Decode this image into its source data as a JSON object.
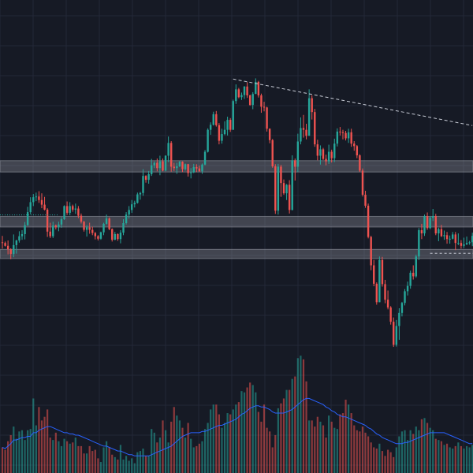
{
  "chart_data": {
    "type": "candlestick",
    "xlabel": "",
    "ylabel": "",
    "ylim": [
      0,
      100
    ],
    "grid": true,
    "colors": {
      "background": "#161a25",
      "grid": "#232838",
      "up": "#26a69a",
      "down": "#ef5350",
      "zone": "#9598a1",
      "trendline": "#c8ccd6",
      "volume_ma": "#2962ff"
    },
    "candles": [
      [
        60.6,
        62.4,
        58.8,
        60.4
      ],
      [
        60.4,
        60.8,
        59.4,
        59.6
      ],
      [
        59.6,
        61.1,
        57.2,
        58.6
      ],
      [
        58.6,
        58.9,
        55.8,
        57.3
      ],
      [
        57.3,
        62.8,
        56.4,
        59.8
      ],
      [
        59.8,
        61.3,
        57.4,
        61.1
      ],
      [
        61.1,
        63.7,
        60.5,
        62.3
      ],
      [
        62.3,
        64.0,
        61.3,
        62.9
      ],
      [
        62.9,
        66.3,
        61.4,
        65.4
      ],
      [
        65.4,
        70.6,
        65.2,
        69.1
      ],
      [
        69.1,
        73.3,
        68.5,
        71.9
      ],
      [
        71.9,
        74.2,
        70.8,
        73.3
      ],
      [
        73.3,
        74.6,
        72.2,
        73.5
      ],
      [
        73.5,
        75.0,
        71.7,
        72.5
      ],
      [
        72.5,
        74.4,
        70.2,
        71.2
      ],
      [
        71.2,
        73.4,
        69.6,
        69.8
      ],
      [
        69.8,
        70.2,
        62.1,
        63.6
      ],
      [
        63.6,
        66.1,
        61.8,
        62.3
      ],
      [
        62.3,
        66.4,
        61.8,
        65.3
      ],
      [
        65.3,
        65.6,
        64.2,
        64.8
      ],
      [
        64.8,
        66.4,
        63.7,
        65.6
      ],
      [
        65.6,
        67.7,
        64.7,
        67.1
      ],
      [
        67.1,
        71.0,
        66.9,
        70.8
      ],
      [
        70.8,
        72.1,
        68.3,
        68.9
      ],
      [
        68.9,
        71.9,
        68.2,
        70.8
      ],
      [
        70.8,
        71.2,
        69.2,
        69.8
      ],
      [
        69.8,
        71.5,
        68.6,
        70.1
      ],
      [
        70.1,
        70.8,
        67.4,
        68.1
      ],
      [
        68.1,
        68.7,
        65.9,
        66.4
      ],
      [
        66.4,
        66.6,
        63.6,
        64.1
      ],
      [
        64.1,
        65.4,
        62.2,
        64.8
      ],
      [
        64.8,
        66.1,
        63.0,
        64.1
      ],
      [
        64.1,
        65.0,
        62.6,
        63.2
      ],
      [
        63.2,
        63.5,
        61.4,
        62.3
      ],
      [
        62.3,
        62.6,
        61.1,
        61.6
      ],
      [
        61.6,
        63.6,
        61.3,
        63.4
      ],
      [
        63.4,
        66.1,
        62.6,
        65.8
      ],
      [
        65.8,
        68.4,
        65.6,
        67.3
      ],
      [
        67.3,
        67.6,
        64.0,
        64.3
      ],
      [
        64.3,
        64.5,
        60.8,
        61.3
      ],
      [
        61.3,
        63.5,
        61.2,
        62.9
      ],
      [
        62.9,
        63.1,
        61.0,
        61.5
      ],
      [
        61.5,
        64.0,
        60.3,
        63.3
      ],
      [
        63.3,
        67.1,
        62.6,
        66.0
      ],
      [
        66.0,
        69.1,
        65.6,
        68.4
      ],
      [
        68.4,
        70.8,
        67.3,
        69.7
      ],
      [
        69.7,
        72.5,
        68.9,
        71.3
      ],
      [
        71.3,
        72.3,
        70.4,
        71.7
      ],
      [
        71.7,
        74.6,
        71.5,
        74.1
      ],
      [
        74.1,
        74.8,
        72.6,
        74.5
      ],
      [
        74.5,
        81.2,
        73.7,
        79.3
      ],
      [
        79.3,
        79.5,
        77.4,
        78.2
      ],
      [
        78.2,
        80.7,
        77.1,
        79.8
      ],
      [
        79.8,
        84.1,
        79.3,
        82.3
      ],
      [
        82.3,
        83.4,
        81.5,
        83.0
      ],
      [
        83.0,
        84.2,
        80.6,
        81.5
      ],
      [
        81.5,
        85.0,
        79.5,
        83.4
      ],
      [
        83.4,
        84.2,
        80.6,
        80.8
      ],
      [
        80.8,
        85.1,
        80.6,
        85.0
      ],
      [
        85.0,
        90.4,
        83.2,
        88.6
      ],
      [
        88.6,
        89.1,
        80.5,
        81.9
      ],
      [
        81.9,
        83.0,
        80.7,
        81.5
      ],
      [
        81.5,
        83.0,
        79.9,
        82.0
      ],
      [
        82.0,
        83.5,
        81.8,
        83.3
      ],
      [
        83.3,
        83.4,
        80.4,
        81.2
      ],
      [
        81.2,
        82.8,
        80.8,
        82.6
      ],
      [
        82.6,
        82.7,
        79.1,
        80.1
      ],
      [
        80.1,
        81.5,
        78.6,
        80.3
      ],
      [
        80.3,
        82.7,
        80.1,
        81.8
      ],
      [
        81.8,
        82.6,
        80.4,
        81.4
      ],
      [
        81.4,
        82.2,
        80.5,
        80.6
      ],
      [
        80.6,
        82.8,
        79.9,
        82.5
      ],
      [
        82.5,
        86.6,
        82.3,
        86.1
      ],
      [
        86.1,
        92.7,
        85.9,
        92.3
      ],
      [
        92.3,
        94.4,
        90.9,
        93.7
      ],
      [
        93.7,
        97.4,
        93.5,
        96.7
      ],
      [
        96.7,
        97.6,
        93.2,
        93.6
      ],
      [
        93.6,
        94.2,
        88.2,
        89.2
      ],
      [
        89.2,
        92.6,
        88.4,
        91.1
      ],
      [
        91.1,
        94.7,
        90.8,
        92.3
      ],
      [
        92.3,
        96.0,
        90.7,
        95.1
      ],
      [
        95.1,
        95.6,
        91.7,
        92.3
      ],
      [
        92.3,
        100.8,
        92.3,
        100.4
      ],
      [
        100.4,
        105.1,
        99.6,
        103.7
      ],
      [
        103.7,
        104.1,
        101.2,
        101.5
      ],
      [
        101.5,
        102.8,
        100.7,
        102.1
      ],
      [
        102.1,
        104.6,
        101.0,
        104.5
      ],
      [
        104.5,
        105.7,
        101.3,
        102.0
      ],
      [
        102.0,
        102.2,
        99.1,
        99.3
      ],
      [
        99.3,
        102.9,
        98.1,
        102.4
      ],
      [
        102.4,
        106.8,
        102.4,
        105.8
      ],
      [
        105.8,
        106.1,
        101.4,
        102.0
      ],
      [
        102.0,
        102.5,
        97.1,
        98.8
      ],
      [
        98.8,
        100.2,
        97.5,
        98.6
      ],
      [
        98.6,
        98.8,
        91.8,
        92.6
      ],
      [
        92.6,
        92.7,
        88.5,
        89.4
      ],
      [
        89.4,
        89.7,
        81.6,
        82.0
      ],
      [
        82.0,
        82.6,
        68.6,
        69.5
      ],
      [
        69.5,
        82.7,
        68.4,
        81.9
      ],
      [
        81.9,
        82.4,
        73.4,
        77.3
      ],
      [
        77.3,
        78.3,
        74.0,
        74.4
      ],
      [
        74.4,
        77.0,
        72.5,
        76.8
      ],
      [
        76.8,
        78.1,
        68.7,
        69.7
      ],
      [
        69.7,
        85.1,
        69.6,
        83.7
      ],
      [
        83.7,
        84.2,
        78.0,
        81.9
      ],
      [
        81.9,
        91.2,
        80.4,
        89.0
      ],
      [
        89.0,
        95.8,
        88.2,
        92.8
      ],
      [
        92.8,
        96.5,
        90.1,
        92.3
      ],
      [
        92.3,
        94.0,
        89.6,
        90.6
      ],
      [
        90.6,
        103.7,
        90.6,
        101.2
      ],
      [
        101.2,
        102.0,
        95.2,
        97.3
      ],
      [
        97.3,
        98.2,
        87.5,
        88.2
      ],
      [
        88.2,
        89.5,
        83.7,
        85.0
      ],
      [
        85.0,
        87.9,
        82.5,
        86.8
      ],
      [
        86.8,
        87.2,
        83.8,
        84.1
      ],
      [
        84.1,
        85.3,
        82.3,
        83.4
      ],
      [
        83.4,
        88.1,
        82.7,
        86.1
      ],
      [
        86.1,
        86.7,
        83.1,
        84.3
      ],
      [
        84.3,
        89.8,
        83.2,
        88.4
      ],
      [
        88.4,
        92.7,
        87.6,
        91.8
      ],
      [
        91.8,
        93.1,
        90.7,
        91.6
      ],
      [
        91.6,
        92.3,
        89.6,
        91.4
      ],
      [
        91.4,
        92.0,
        89.3,
        89.9
      ],
      [
        89.9,
        92.6,
        88.6,
        91.6
      ],
      [
        91.6,
        92.6,
        87.5,
        88.4
      ],
      [
        88.4,
        89.1,
        86.4,
        87.7
      ],
      [
        87.7,
        88.0,
        84.3,
        85.1
      ],
      [
        85.1,
        85.4,
        80.4,
        80.8
      ],
      [
        80.8,
        81.4,
        73.5,
        74.0
      ],
      [
        74.0,
        75.1,
        70.3,
        70.9
      ],
      [
        70.9,
        71.5,
        61.7,
        62.1
      ],
      [
        62.1,
        62.4,
        52.7,
        54.1
      ],
      [
        54.1,
        55.6,
        48.2,
        48.9
      ],
      [
        48.9,
        49.3,
        43.0,
        43.7
      ],
      [
        43.7,
        56.6,
        43.7,
        55.6
      ],
      [
        55.6,
        56.5,
        48.1,
        48.8
      ],
      [
        48.8,
        50.0,
        43.4,
        44.4
      ],
      [
        44.4,
        47.0,
        41.7,
        42.2
      ],
      [
        42.2,
        42.6,
        37.4,
        38.2
      ],
      [
        38.2,
        39.4,
        31.1,
        31.7
      ],
      [
        31.7,
        38.7,
        31.2,
        37.0
      ],
      [
        37.0,
        42.0,
        33.1,
        40.7
      ],
      [
        40.7,
        43.8,
        39.7,
        43.5
      ],
      [
        43.5,
        47.4,
        42.8,
        46.8
      ],
      [
        46.8,
        49.5,
        45.6,
        48.3
      ],
      [
        48.3,
        52.6,
        47.5,
        52.0
      ],
      [
        52.0,
        54.1,
        50.1,
        51.0
      ],
      [
        51.0,
        57.1,
        50.6,
        56.6
      ],
      [
        56.6,
        64.6,
        55.6,
        64.0
      ],
      [
        64.0,
        65.8,
        61.5,
        63.1
      ],
      [
        63.1,
        68.4,
        62.4,
        68.0
      ],
      [
        68.0,
        69.0,
        64.1,
        64.6
      ],
      [
        64.6,
        68.0,
        64.3,
        67.5
      ],
      [
        67.5,
        70.0,
        66.6,
        68.0
      ],
      [
        68.0,
        68.6,
        62.6,
        63.1
      ],
      [
        63.1,
        64.7,
        60.9,
        64.3
      ],
      [
        64.3,
        65.5,
        62.1,
        62.3
      ],
      [
        62.3,
        63.9,
        61.3,
        62.6
      ],
      [
        62.6,
        63.5,
        60.2,
        61.5
      ],
      [
        61.5,
        62.5,
        60.2,
        61.6
      ],
      [
        61.6,
        63.5,
        61.4,
        62.8
      ],
      [
        62.8,
        63.5,
        58.4,
        60.4
      ],
      [
        60.4,
        63.1,
        59.8,
        60.4
      ],
      [
        60.4,
        61.2,
        58.8,
        59.6
      ],
      [
        59.6,
        61.9,
        59.0,
        60.0
      ],
      [
        60.0,
        62.2,
        59.8,
        60.4
      ],
      [
        60.4,
        61.0,
        59.9,
        60.6
      ],
      [
        60.6,
        63.3,
        59.5,
        62.4
      ]
    ],
    "volume": [
      2.1,
      1.9,
      2.6,
      3.1,
      3.8,
      2.8,
      3.4,
      3.5,
      2.7,
      3.5,
      3.6,
      6.1,
      3.9,
      5.4,
      4.3,
      4.6,
      5.2,
      2.9,
      2.7,
      3.3,
      2.6,
      2.2,
      2.8,
      2.6,
      2.4,
      2.5,
      2.9,
      2.2,
      2.2,
      1.6,
      1.6,
      2.2,
      1.8,
      1.9,
      1.2,
      0.9,
      2.1,
      2.6,
      2.1,
      1.5,
      1.3,
      1.1,
      2.3,
      1.1,
      1.4,
      1.0,
      1.2,
      0.8,
      1.7,
      1.8,
      2.0,
      1.4,
      1.4,
      3.6,
      3.3,
      2.5,
      2.9,
      4.3,
      3.5,
      2.5,
      4.2,
      5.4,
      4.7,
      4.3,
      3.7,
      2.9,
      4.1,
      2.8,
      2.1,
      2.2,
      2.4,
      2.6,
      3.6,
      4.1,
      5.2,
      5.6,
      5.6,
      4.8,
      3.7,
      4.1,
      4.9,
      4.8,
      5.2,
      5.6,
      5.8,
      6.7,
      6.6,
      7.0,
      7.4,
      7.2,
      6.6,
      5.0,
      4.2,
      5.6,
      3.7,
      3.4,
      2.1,
      3.1,
      5.3,
      5.7,
      6.1,
      6.8,
      6.8,
      7.7,
      7.9,
      9.4,
      9.6,
      9.3,
      7.5,
      4.3,
      4.3,
      3.8,
      4.6,
      4.2,
      3.9,
      2.9,
      4.7,
      4.2,
      3.7,
      3.6,
      4.8,
      4.9,
      6.0,
      5.6,
      4.9,
      3.9,
      3.5,
      3.4,
      3.8,
      3.3,
      3.0,
      2.5,
      2.1,
      2.0,
      2.4,
      1.8,
      1.4,
      1.9,
      1.7,
      1.3,
      2.1,
      3.0,
      3.4,
      3.5,
      2.7,
      3.5,
      3.2,
      3.8,
      3.5,
      4.4,
      4.5,
      4.1,
      3.7,
      3.5,
      2.8,
      2.7,
      2.6,
      2.3,
      2.4,
      2.1,
      2.0,
      2.2,
      2.5,
      2.2,
      2.0,
      2.2,
      2.1,
      2.3
    ],
    "volume_ma": [
      2.1,
      2.0,
      2.2,
      2.4,
      2.7,
      2.7,
      2.8,
      2.9,
      2.9,
      3.0,
      3.0,
      3.3,
      3.3,
      3.5,
      3.6,
      3.7,
      3.8,
      3.8,
      3.7,
      3.6,
      3.5,
      3.4,
      3.3,
      3.3,
      3.2,
      3.2,
      3.1,
      3.1,
      3.0,
      2.9,
      2.8,
      2.7,
      2.6,
      2.5,
      2.4,
      2.3,
      2.2,
      2.2,
      2.1,
      2.0,
      1.9,
      1.8,
      1.8,
      1.7,
      1.6,
      1.5,
      1.5,
      1.4,
      1.4,
      1.4,
      1.4,
      1.4,
      1.4,
      1.5,
      1.6,
      1.7,
      1.8,
      1.9,
      2.0,
      2.1,
      2.2,
      2.4,
      2.6,
      2.8,
      3.0,
      3.1,
      3.2,
      3.3,
      3.3,
      3.3,
      3.3,
      3.4,
      3.4,
      3.5,
      3.6,
      3.7,
      3.8,
      3.9,
      3.9,
      4.0,
      4.1,
      4.2,
      4.3,
      4.4,
      4.6,
      4.8,
      4.9,
      5.1,
      5.3,
      5.4,
      5.5,
      5.5,
      5.4,
      5.4,
      5.3,
      5.2,
      5.0,
      4.9,
      4.9,
      4.9,
      4.9,
      5.0,
      5.1,
      5.2,
      5.4,
      5.6,
      5.8,
      6.0,
      6.1,
      6.1,
      6.0,
      5.9,
      5.8,
      5.7,
      5.6,
      5.4,
      5.3,
      5.1,
      5.0,
      4.8,
      4.7,
      4.6,
      4.6,
      4.5,
      4.4,
      4.3,
      4.2,
      4.1,
      4.0,
      3.9,
      3.7,
      3.6,
      3.4,
      3.2,
      3.1,
      2.9,
      2.8,
      2.7,
      2.6,
      2.5,
      2.4,
      2.4,
      2.4,
      2.5,
      2.5,
      2.6,
      2.7,
      2.8,
      2.9,
      3.0,
      3.1,
      3.2,
      3.3,
      3.3,
      3.3,
      3.3,
      3.3,
      3.3,
      3.2,
      3.1,
      3.0,
      2.9,
      2.8,
      2.7,
      2.6,
      2.5,
      2.4,
      2.4
    ],
    "zones": [
      {
        "low": 80.4,
        "high": 83.6
      },
      {
        "low": 64.9,
        "high": 67.9
      },
      {
        "low": 56.0,
        "high": 58.6
      }
    ],
    "trendline": {
      "start": {
        "index": 82,
        "value": 106.6
      },
      "end": {
        "index": 167,
        "value": 93.5
      }
    },
    "dotted_level": {
      "value": 68.3
    },
    "dashed_level": {
      "start_index": 152,
      "value": 57.5
    }
  }
}
